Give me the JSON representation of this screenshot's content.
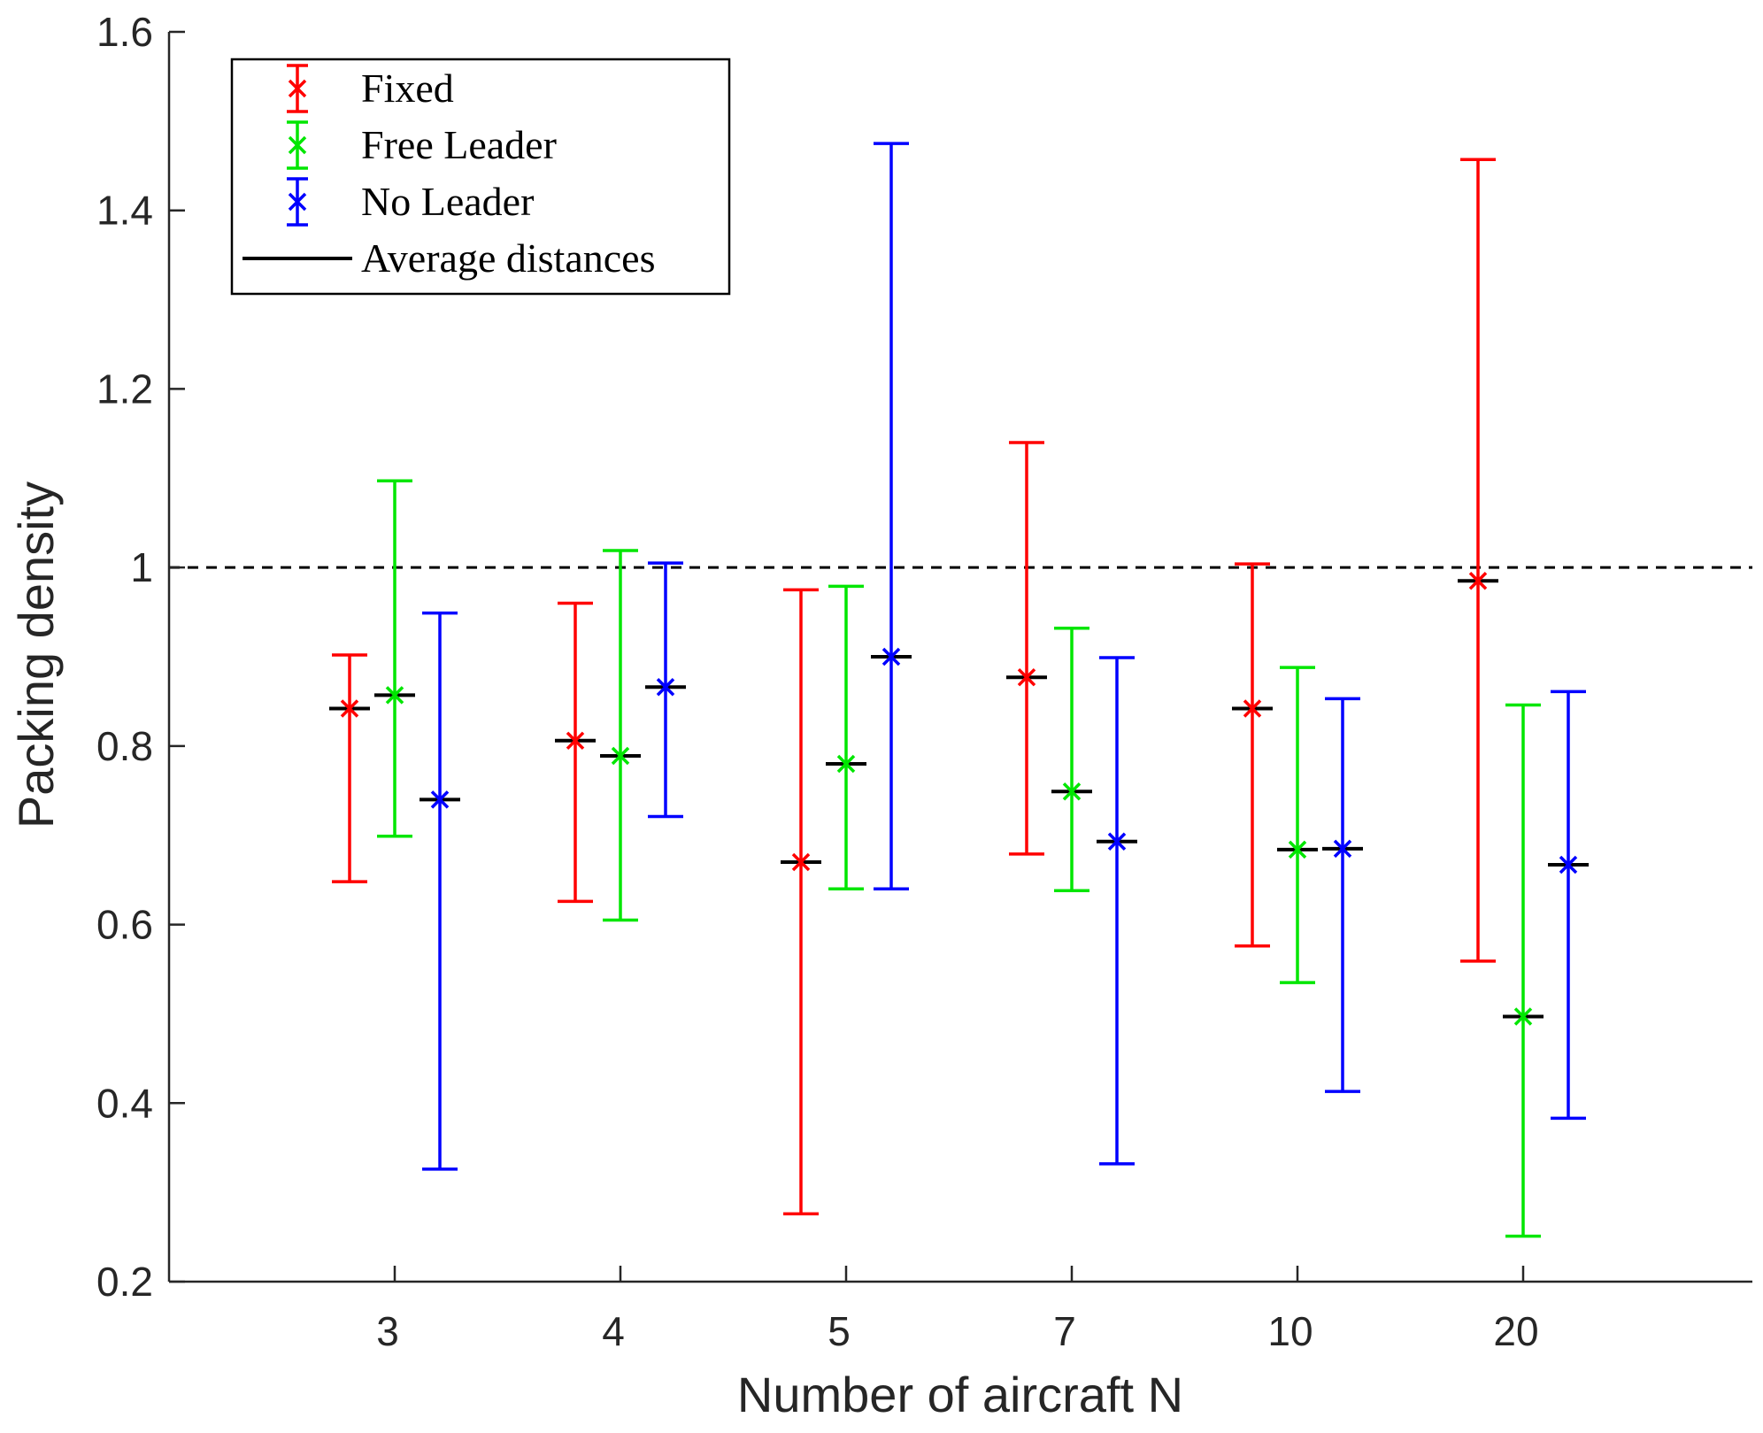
{
  "chart_data": {
    "type": "errorbar",
    "title": "",
    "xlabel": "Number of aircraft N",
    "ylabel": "Packing density",
    "categories": [
      "3",
      "4",
      "5",
      "7",
      "10",
      "20"
    ],
    "ylim": [
      0.2,
      1.6
    ],
    "yticks": [
      0.2,
      0.4,
      0.6,
      0.8,
      1,
      1.2,
      1.4,
      1.6
    ],
    "ytick_labels": [
      "0.2",
      "0.4",
      "0.6",
      "0.8",
      "1",
      "1.2",
      "1.4",
      "1.6"
    ],
    "reference_line": {
      "y": 1.0,
      "style": "dashed",
      "color": "#000000"
    },
    "legend_position": "top-left",
    "series": [
      {
        "name": "Fixed",
        "color": "#ff0000",
        "mean": [
          0.842,
          0.806,
          0.67,
          0.877,
          0.842,
          0.985
        ],
        "lower": [
          0.648,
          0.626,
          0.276,
          0.679,
          0.576,
          0.559
        ],
        "upper": [
          0.902,
          0.96,
          0.975,
          1.14,
          1.004,
          1.457
        ],
        "average_distance": [
          0.842,
          0.806,
          0.67,
          0.877,
          0.842,
          0.985
        ]
      },
      {
        "name": "Free Leader",
        "color": "#00e600",
        "mean": [
          0.857,
          0.789,
          0.78,
          0.749,
          0.684,
          0.497
        ],
        "lower": [
          0.699,
          0.605,
          0.64,
          0.638,
          0.535,
          0.251
        ],
        "upper": [
          1.097,
          1.019,
          0.979,
          0.932,
          0.888,
          0.846
        ],
        "average_distance": [
          0.857,
          0.789,
          0.78,
          0.749,
          0.684,
          0.497
        ]
      },
      {
        "name": "No Leader",
        "color": "#0000ff",
        "mean": [
          0.74,
          0.866,
          0.9,
          0.693,
          0.685,
          0.667
        ],
        "lower": [
          0.326,
          0.721,
          0.64,
          0.332,
          0.413,
          0.383
        ],
        "upper": [
          0.949,
          1.005,
          1.475,
          0.899,
          0.853,
          0.861
        ],
        "average_distance": [
          0.74,
          0.866,
          0.9,
          0.693,
          0.685,
          0.667
        ]
      }
    ],
    "legend": [
      "Fixed",
      "Free Leader",
      "No Leader",
      "Average distances"
    ],
    "average_marker_color": "#000000"
  }
}
